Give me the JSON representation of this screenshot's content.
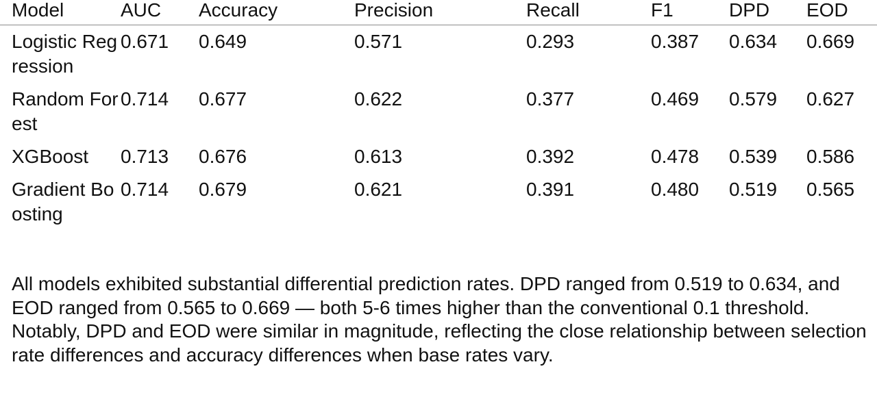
{
  "table": {
    "headers": [
      "Model",
      "AUC",
      "Accuracy",
      "Precision",
      "Recall",
      "F1",
      "DPD",
      "EOD"
    ],
    "rows": [
      [
        "Logistic Regression",
        "0.671",
        "0.649",
        "0.571",
        "0.293",
        "0.387",
        "0.634",
        "0.669"
      ],
      [
        "Random Forest",
        "0.714",
        "0.677",
        "0.622",
        "0.377",
        "0.469",
        "0.579",
        "0.627"
      ],
      [
        "XGBoost",
        "0.713",
        "0.676",
        "0.613",
        "0.392",
        "0.478",
        "0.539",
        "0.586"
      ],
      [
        "Gradient Boosting",
        "0.714",
        "0.679",
        "0.621",
        "0.391",
        "0.480",
        "0.519",
        "0.565"
      ]
    ]
  },
  "note": "All models exhibited substantial differential prediction rates. DPD ranged from 0.519 to 0.634, and EOD ranged from 0.565 to 0.669 — both 5-6 times higher than the conventional 0.1 threshold. Notably, DPD and EOD were similar in magnitude, reflecting the close relationship between selection rate differences and accuracy differences when base rates vary."
}
